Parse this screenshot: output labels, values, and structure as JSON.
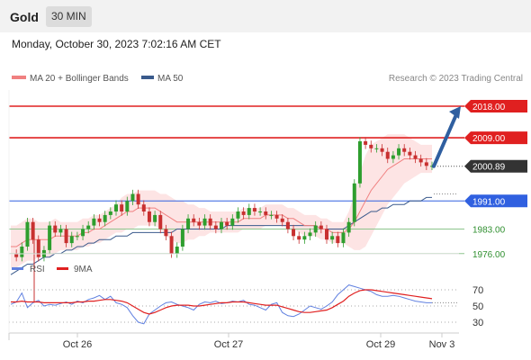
{
  "app": {
    "title": "Gold",
    "timeframe": "30 MIN"
  },
  "timestamp": "Monday, October 30, 2023 7:02:16 AM CET",
  "credit": "Research © 2023 Trading Central",
  "colors": {
    "ma20": "#f08080",
    "bollinger_fill": "#fde4e4",
    "ma50": "#3a5a8c",
    "resistance": "#e02020",
    "pivot": "#3060e0",
    "support": "#8dc58d",
    "support_text": "#2f8f2f",
    "price_label": "#333333",
    "candle_up": "#2e9e2e",
    "candle_down": "#c83030",
    "rsi": "#6080e0",
    "rsi_ma": "#e02020",
    "arrow": "#2f5fa0"
  },
  "chart_data": [
    {
      "type": "line",
      "panel": "price",
      "legend": [
        "MA 20 + Bollinger Bands",
        "MA 50"
      ],
      "x_tick_labels": [
        "Oct 26",
        "Oct 27",
        "Oct 29",
        "Nov 3"
      ],
      "ylim": [
        1962,
        2022
      ],
      "levels": [
        {
          "value": 2018.0,
          "label": "2018.00",
          "kind": "resistance"
        },
        {
          "value": 2009.0,
          "label": "2009.00",
          "kind": "resistance"
        },
        {
          "value": 2000.89,
          "label": "2000.89",
          "kind": "last-price"
        },
        {
          "value": 1991.0,
          "label": "1991.00",
          "kind": "pivot"
        },
        {
          "value": 1983.0,
          "label": "1983.00",
          "kind": "support"
        },
        {
          "value": 1976.0,
          "label": "1976.00",
          "kind": "support"
        }
      ],
      "series": [
        {
          "name": "MA 20 + Bollinger Bands"
        },
        {
          "name": "MA 50"
        }
      ],
      "price_path": [
        1976,
        1975,
        1978,
        1985,
        1980,
        1975,
        1977,
        1984,
        1982,
        1983,
        1979,
        1981,
        1981,
        1983,
        1984,
        1986,
        1985,
        1987,
        1988,
        1990,
        1988,
        1991,
        1993,
        1990,
        1988,
        1985,
        1987,
        1983,
        1981,
        1976,
        1978,
        1983,
        1986,
        1985,
        1984,
        1986,
        1984,
        1983,
        1985,
        1984,
        1986,
        1988,
        1987,
        1989,
        1988,
        1988,
        1987,
        1987,
        1986,
        1985,
        1983,
        1981,
        1980,
        1981,
        1982,
        1984,
        1983,
        1980,
        1981,
        1979,
        1982,
        1985,
        1996,
        2008,
        2007,
        2006,
        2006,
        2005,
        2003,
        2004,
        2006,
        2005,
        2004,
        2003,
        2002,
        2001,
        2001
      ],
      "ma20_path": [
        1978,
        1978,
        1979,
        1980,
        1980,
        1980,
        1980,
        1980,
        1981,
        1981,
        1981,
        1981,
        1981,
        1982,
        1982,
        1983,
        1983,
        1984,
        1985,
        1986,
        1987,
        1988,
        1988,
        1989,
        1989,
        1989,
        1989,
        1988,
        1987,
        1986,
        1985,
        1985,
        1985,
        1985,
        1985,
        1985,
        1985,
        1985,
        1985,
        1985,
        1985,
        1985,
        1986,
        1986,
        1986,
        1986,
        1987,
        1987,
        1987,
        1987,
        1986,
        1986,
        1985,
        1984,
        1984,
        1984,
        1983,
        1983,
        1982,
        1982,
        1982,
        1983,
        1985,
        1988,
        1991,
        1994,
        1996,
        1998,
        2000,
        2001,
        2002,
        2003,
        2003,
        2003,
        2003,
        2003,
        2003
      ],
      "bb_width": [
        6,
        6,
        6,
        6,
        6,
        5,
        5,
        5,
        5,
        4,
        4,
        4,
        4,
        4,
        4,
        4,
        4,
        4,
        4,
        4,
        5,
        5,
        5,
        5,
        5,
        5,
        5,
        5,
        6,
        6,
        6,
        6,
        5,
        5,
        4,
        4,
        3,
        3,
        3,
        3,
        3,
        3,
        3,
        3,
        3,
        3,
        3,
        3,
        3,
        3,
        3,
        3,
        3,
        3,
        3,
        3,
        3,
        3,
        3,
        3,
        3,
        5,
        8,
        11,
        13,
        13,
        12,
        11,
        10,
        9,
        8,
        7,
        6,
        5,
        4,
        4,
        4
      ],
      "ma50_path": [
        1970,
        1971,
        1972,
        1973,
        1973,
        1974,
        1975,
        1975,
        1976,
        1976,
        1977,
        1977,
        1978,
        1978,
        1979,
        1979,
        1980,
        1980,
        1980,
        1981,
        1981,
        1981,
        1982,
        1982,
        1982,
        1982,
        1982,
        1982,
        1982,
        1982,
        1983,
        1983,
        1983,
        1983,
        1983,
        1983,
        1983,
        1983,
        1983,
        1984,
        1984,
        1984,
        1984,
        1984,
        1984,
        1984,
        1984,
        1984,
        1984,
        1984,
        1984,
        1984,
        1984,
        1984,
        1984,
        1984,
        1983,
        1983,
        1983,
        1983,
        1983,
        1984,
        1985,
        1986,
        1987,
        1988,
        1988,
        1989,
        1989,
        1990,
        1990,
        1990,
        1991,
        1991,
        1991,
        1992,
        1992
      ],
      "forecast": {
        "from": 2000.89,
        "to": 2018.0
      }
    },
    {
      "type": "line",
      "panel": "rsi",
      "legend": [
        "RSI",
        "9MA"
      ],
      "ylim": [
        20,
        80
      ],
      "y_ticks": [
        70,
        50,
        30
      ],
      "series": [
        {
          "name": "RSI",
          "values": [
            52,
            55,
            66,
            48,
            54,
            57,
            50,
            52,
            51,
            53,
            55,
            52,
            56,
            54,
            58,
            60,
            63,
            58,
            62,
            54,
            52,
            48,
            38,
            30,
            28,
            40,
            45,
            50,
            54,
            55,
            52,
            50,
            48,
            45,
            52,
            55,
            54,
            56,
            53,
            54,
            56,
            55,
            57,
            52,
            51,
            48,
            45,
            52,
            54,
            42,
            38,
            37,
            40,
            45,
            50,
            48,
            46,
            50,
            55,
            64,
            70,
            76,
            74,
            72,
            70,
            68,
            64,
            62,
            62,
            63,
            62,
            60,
            58,
            56,
            55,
            54,
            54
          ]
        },
        {
          "name": "9MA",
          "values": [
            55,
            55,
            56,
            55,
            55,
            55,
            54,
            54,
            54,
            54,
            54,
            54,
            55,
            55,
            56,
            56,
            57,
            58,
            58,
            57,
            56,
            54,
            50,
            46,
            42,
            40,
            42,
            45,
            48,
            50,
            51,
            51,
            51,
            50,
            50,
            51,
            52,
            53,
            54,
            54,
            55,
            55,
            55,
            54,
            53,
            52,
            51,
            51,
            51,
            49,
            47,
            45,
            43,
            42,
            42,
            43,
            44,
            45,
            48,
            52,
            56,
            62,
            66,
            69,
            70,
            70,
            69,
            68,
            67,
            66,
            65,
            64,
            63,
            62,
            61,
            60,
            59
          ]
        }
      ]
    }
  ]
}
